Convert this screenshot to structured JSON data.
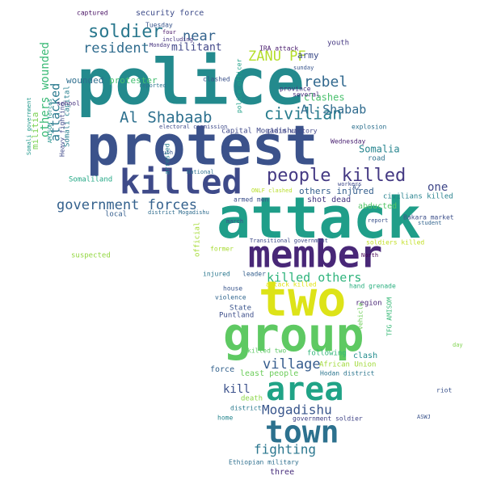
{
  "cloud": {
    "words": [
      {
        "text": "police",
        "color": "#238a8d"
      },
      {
        "text": "protest",
        "color": "#3b528b"
      },
      {
        "text": "attack",
        "color": "#1f9e89"
      },
      {
        "text": "killed",
        "color": "#3e4a89"
      },
      {
        "text": "member",
        "color": "#482777"
      },
      {
        "text": "two",
        "color": "#dde318"
      },
      {
        "text": "group",
        "color": "#5ec962"
      },
      {
        "text": "area",
        "color": "#20a386"
      },
      {
        "text": "town",
        "color": "#2c718e"
      },
      {
        "text": "people killed",
        "color": "#443983"
      },
      {
        "text": "soldier",
        "color": "#2a788e"
      },
      {
        "text": "rebel",
        "color": "#31688e"
      },
      {
        "text": "civilian",
        "color": "#287d8e"
      },
      {
        "text": "Al Shabaab",
        "color": "#2d708e"
      },
      {
        "text": "Al Shabab",
        "color": "#2f6b8e"
      },
      {
        "text": "ZANU PF",
        "color": "#b5de2b"
      },
      {
        "text": "near",
        "color": "#33638d"
      },
      {
        "text": "resident",
        "color": "#2f6c8e"
      },
      {
        "text": "attacked",
        "color": "#297a8e"
      },
      {
        "text": "government forces",
        "color": "#34618d"
      },
      {
        "text": "others wounded",
        "color": "#3aba76"
      },
      {
        "text": "killed others",
        "color": "#2fb47c"
      },
      {
        "text": "village",
        "color": "#365c8d"
      },
      {
        "text": "Mogadishu",
        "color": "#39568c"
      },
      {
        "text": "fighting",
        "color": "#2a768e"
      },
      {
        "text": "kill",
        "color": "#3b518b"
      },
      {
        "text": "one",
        "color": "#3f4788"
      },
      {
        "text": "militant",
        "color": "#404688"
      },
      {
        "text": "clashes",
        "color": "#4ac16d"
      },
      {
        "text": "Somalia",
        "color": "#25848e"
      },
      {
        "text": "wounded",
        "color": "#2e6e8e"
      },
      {
        "text": "protester",
        "color": "#44bf70"
      },
      {
        "text": "army",
        "color": "#3d4d8a"
      },
      {
        "text": "civilians killed",
        "color": "#26828e"
      },
      {
        "text": "others injured",
        "color": "#355f8d"
      },
      {
        "text": "shot dead",
        "color": "#453781"
      },
      {
        "text": "abducted",
        "color": "#54c568"
      },
      {
        "text": "security force",
        "color": "#3e4c8a"
      },
      {
        "text": "militia",
        "color": "#7ad151"
      },
      {
        "text": "Puntland",
        "color": "#3d4e8a"
      },
      {
        "text": "government soldier",
        "color": "#414487"
      },
      {
        "text": "Ethiopian military",
        "color": "#2e6f8e"
      },
      {
        "text": "three",
        "color": "#472d7b"
      },
      {
        "text": "least people",
        "color": "#6ccd5a"
      },
      {
        "text": "following",
        "color": "#32b67a"
      },
      {
        "text": "African Union",
        "color": "#a0da39"
      },
      {
        "text": "clash",
        "color": "#228c8d"
      },
      {
        "text": "force",
        "color": "#33628d"
      },
      {
        "text": "death",
        "color": "#8bd646"
      },
      {
        "text": "capital Mogadishu",
        "color": "#3f4889"
      },
      {
        "text": "region",
        "color": "#482475"
      },
      {
        "text": "suspected",
        "color": "#93d741"
      },
      {
        "text": "local",
        "color": "#355e8d"
      },
      {
        "text": "Somali capital",
        "color": "#277f8e"
      },
      {
        "text": "youth",
        "color": "#453882"
      },
      {
        "text": "State",
        "color": "#3a548c"
      },
      {
        "text": "Hodan district",
        "color": "#2b758e"
      },
      {
        "text": "TFG AMISOM",
        "color": "#38b977"
      },
      {
        "text": "Somaliland",
        "color": "#22a785"
      },
      {
        "text": "Bakara market",
        "color": "#3c4f8a"
      },
      {
        "text": "hand grenade",
        "color": "#29af7f"
      },
      {
        "text": "road",
        "color": "#2c728e"
      },
      {
        "text": "official",
        "color": "#a5db36"
      },
      {
        "text": "killed two",
        "color": "#5cc863"
      },
      {
        "text": "captured",
        "color": "#471063"
      },
      {
        "text": "IRA attack",
        "color": "#481a6c"
      },
      {
        "text": "Tuesday",
        "color": "#39558c"
      },
      {
        "text": "Monday",
        "color": "#46337f"
      },
      {
        "text": "clashed",
        "color": "#3b528b"
      },
      {
        "text": "province",
        "color": "#46307e"
      },
      {
        "text": "several",
        "color": "#4a2f7e"
      },
      {
        "text": "police officer",
        "color": "#1fa088"
      },
      {
        "text": "Wednesday",
        "color": "#481f70"
      },
      {
        "text": "explosion",
        "color": "#2d708e"
      },
      {
        "text": "report",
        "color": "#3b528b"
      },
      {
        "text": "student",
        "color": "#32648e"
      },
      {
        "text": "North",
        "color": "#440154"
      },
      {
        "text": "former",
        "color": "#a8db34"
      },
      {
        "text": "leader",
        "color": "#35608d"
      },
      {
        "text": "Heavy fighting",
        "color": "#3f4a8a"
      },
      {
        "text": "electoral commission",
        "color": "#3e4a89"
      },
      {
        "text": "claim victory",
        "color": "#404588"
      },
      {
        "text": "school",
        "color": "#46327e"
      },
      {
        "text": "day",
        "color": "#7fd34e"
      },
      {
        "text": "riot",
        "color": "#3b528b"
      },
      {
        "text": "armed men",
        "color": "#3c508b"
      },
      {
        "text": "violence",
        "color": "#31668e"
      },
      {
        "text": "march",
        "color": "#3d4e8a"
      },
      {
        "text": "injured",
        "color": "#2a778e"
      },
      {
        "text": "South",
        "color": "#3a548c"
      },
      {
        "text": "National",
        "color": "#2d708e"
      },
      {
        "text": "vehicle",
        "color": "#6ece58"
      },
      {
        "text": "house",
        "color": "#39568c"
      },
      {
        "text": "home",
        "color": "#25858e"
      },
      {
        "text": "district",
        "color": "#29798e"
      },
      {
        "text": "sunday",
        "color": "#39558c"
      },
      {
        "text": "four",
        "color": "#471365"
      },
      {
        "text": "including",
        "color": "#45337f"
      },
      {
        "text": "attack killed",
        "color": "#e2e418"
      },
      {
        "text": "district Mogadishu",
        "color": "#2f6c8e"
      },
      {
        "text": "Transitional government",
        "color": "#3e4989"
      },
      {
        "text": "soldiers killed",
        "color": "#c2df23"
      },
      {
        "text": "ONLF clashed",
        "color": "#b8de29"
      },
      {
        "text": "workers",
        "color": "#3f4889"
      },
      {
        "text": "A2",
        "color": "#38588c"
      },
      {
        "text": "ASWJ",
        "color": "#3a538b"
      },
      {
        "text": "reported",
        "color": "#2b748e"
      },
      {
        "text": "arrested",
        "color": "#277e8e"
      },
      {
        "text": "AMISOM forces",
        "color": "#21918c"
      },
      {
        "text": "Somali government",
        "color": "#1f988b"
      }
    ]
  }
}
